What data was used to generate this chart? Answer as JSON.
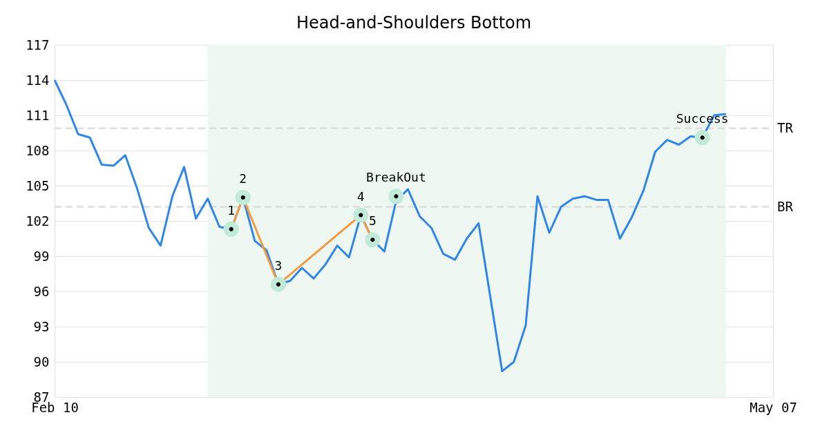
{
  "chart_data": {
    "type": "line",
    "title": "Head-and-Shoulders Bottom",
    "categories": [
      "Feb 10",
      null,
      null,
      null,
      null,
      null,
      null,
      null,
      null,
      null,
      null,
      null,
      null,
      null,
      null,
      null,
      null,
      null,
      null,
      null,
      null,
      null,
      null,
      null,
      null,
      null,
      null,
      null,
      null,
      null,
      null,
      null,
      null,
      null,
      null,
      null,
      null,
      null,
      null,
      null,
      null,
      null,
      null,
      null,
      null,
      null,
      null,
      null,
      null,
      null,
      null,
      null,
      null,
      null,
      null,
      null,
      null,
      null,
      null,
      null,
      null,
      "May 07"
    ],
    "ylim": [
      87,
      117
    ],
    "yticks": [
      87,
      90,
      93,
      96,
      99,
      102,
      105,
      108,
      111,
      114,
      117
    ],
    "grid": "y",
    "series": [
      {
        "color": "#2e86e8",
        "values": [
          114.0,
          111.9,
          109.4,
          109.1,
          106.8,
          106.7,
          107.6,
          104.8,
          101.4,
          99.9,
          104.1,
          106.6,
          102.2,
          103.9,
          101.5,
          101.3,
          104.0,
          100.3,
          99.5,
          96.6,
          96.9,
          98.0,
          97.1,
          98.3,
          99.9,
          98.9,
          102.5,
          100.4,
          99.4,
          103.7,
          104.7,
          102.4,
          101.4,
          99.2,
          98.7,
          100.5,
          101.8,
          95.5,
          89.2,
          90.0,
          93.1,
          104.1,
          101.0,
          103.2,
          103.9,
          104.1,
          103.8,
          103.8,
          100.5,
          102.3,
          104.6,
          107.9,
          108.9,
          108.5,
          109.2,
          109.1,
          111.0,
          111.1,
          null,
          null,
          null,
          null
        ],
        "marker": "none"
      },
      {
        "type": "line",
        "color": "#f59b3f",
        "values": [
          null,
          null,
          null,
          null,
          null,
          null,
          null,
          null,
          null,
          null,
          null,
          null,
          null,
          null,
          null,
          101.3,
          104.0,
          null,
          null,
          96.6,
          null,
          null,
          null,
          null,
          null,
          null,
          102.5,
          100.4,
          null,
          null,
          null,
          null,
          null,
          null,
          null,
          null,
          null,
          null,
          null,
          null,
          null,
          null,
          null,
          null,
          null,
          null,
          null,
          null,
          null,
          null,
          null,
          null,
          null,
          null,
          null,
          null,
          null,
          null,
          null,
          null,
          null,
          null
        ],
        "marker": "circle"
      },
      {
        "type": "scatter",
        "color": "#000000",
        "values": [
          null,
          null,
          null,
          null,
          null,
          null,
          null,
          null,
          null,
          null,
          null,
          null,
          null,
          null,
          null,
          null,
          null,
          null,
          null,
          null,
          null,
          null,
          null,
          null,
          null,
          null,
          null,
          null,
          null,
          104.1,
          null,
          null,
          null,
          null,
          null,
          null,
          null,
          null,
          null,
          null,
          null,
          null,
          null,
          null,
          null,
          null,
          null,
          null,
          null,
          null,
          null,
          null,
          null,
          null,
          null,
          109.1,
          null,
          null,
          null,
          null,
          null,
          null
        ],
        "marker": "circle"
      }
    ],
    "annotations": [
      "1",
      "2",
      "3",
      "4",
      "5",
      "BreakOut",
      "Success"
    ],
    "ref_lines": [
      {
        "axis": "y",
        "value": 109.9,
        "label": "TR",
        "color": "#dddddd",
        "line_style": "dashed"
      },
      {
        "axis": "y",
        "value": 103.2,
        "label": "BR",
        "color": "#dddddd",
        "line_style": "dashed"
      }
    ]
  }
}
